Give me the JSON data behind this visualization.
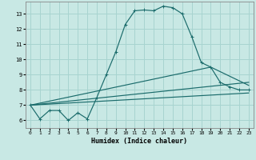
{
  "xlabel": "Humidex (Indice chaleur)",
  "bg_color": "#c8e8e4",
  "grid_color": "#a8d4d0",
  "line_color": "#1a6b6b",
  "xlim": [
    -0.5,
    23.5
  ],
  "ylim": [
    5.5,
    13.8
  ],
  "yticks": [
    6,
    7,
    8,
    9,
    10,
    11,
    12,
    13
  ],
  "xticks": [
    0,
    1,
    2,
    3,
    4,
    5,
    6,
    7,
    8,
    9,
    10,
    11,
    12,
    13,
    14,
    15,
    16,
    17,
    18,
    19,
    20,
    21,
    22,
    23
  ],
  "main_x": [
    0,
    1,
    2,
    3,
    4,
    5,
    6,
    7,
    8,
    9,
    10,
    11,
    12,
    13,
    14,
    15,
    16,
    17,
    18,
    19,
    20,
    21,
    22,
    23
  ],
  "main_y": [
    7.0,
    6.1,
    6.65,
    6.65,
    6.0,
    6.5,
    6.1,
    7.5,
    9.0,
    10.5,
    12.3,
    13.2,
    13.25,
    13.2,
    13.5,
    13.4,
    13.0,
    11.5,
    9.8,
    9.5,
    8.5,
    8.2,
    8.0,
    8.0
  ],
  "line2_x": [
    0,
    19,
    23
  ],
  "line2_y": [
    7.0,
    9.5,
    8.3
  ],
  "line3_x": [
    0,
    23
  ],
  "line3_y": [
    7.0,
    8.5
  ],
  "line4_x": [
    0,
    23
  ],
  "line4_y": [
    7.0,
    7.8
  ],
  "marker": "+"
}
